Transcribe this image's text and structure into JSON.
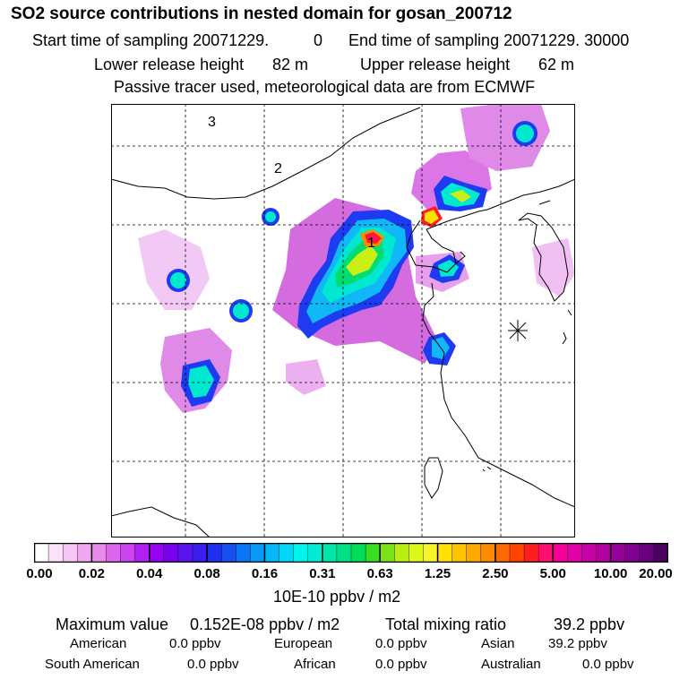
{
  "header": {
    "title": "SO2 source contributions in nested domain for gosan_200712",
    "start_label": "Start time of sampling 20071229.",
    "start_value": "0",
    "end_label": "End time of sampling 20071229. 30000",
    "lower_label": "Lower release height",
    "lower_value": "82 m",
    "upper_label": "Upper release height",
    "upper_value": "62 m",
    "note": "Passive tracer used, meteorological data are from ECMWF"
  },
  "map": {
    "region_labels": [
      "1",
      "2",
      "3"
    ],
    "receptor_marker": "receptor-star"
  },
  "colorbar": {
    "tick_labels": [
      "0.00",
      "0.02",
      "0.04",
      "0.08",
      "0.16",
      "0.31",
      "0.63",
      "1.25",
      "2.50",
      "5.00",
      "10.00",
      "20.00"
    ],
    "unit": "10E-10 ppbv / m2",
    "colors": [
      "#ffffff",
      "#fbe2fb",
      "#f6c6f6",
      "#f0a8f0",
      "#e88ae8",
      "#dc66ec",
      "#cc44f0",
      "#b020f0",
      "#9800f0",
      "#7a00f0",
      "#5a14f0",
      "#3a1ef0",
      "#2030f0",
      "#1850f0",
      "#0a74f4",
      "#0898f8",
      "#04b8fa",
      "#00d8f8",
      "#00f4ee",
      "#00ecd0",
      "#00e6a8",
      "#00e084",
      "#00dc58",
      "#3ade20",
      "#7ae418",
      "#b8ee14",
      "#def818",
      "#f8f42c",
      "#ffe000",
      "#ffc400",
      "#ffa800",
      "#ff8c00",
      "#ff6a00",
      "#ff4400",
      "#ff1e1e",
      "#ff1070",
      "#f40098",
      "#e000a8",
      "#c800a8",
      "#b000a0",
      "#98009a",
      "#800090",
      "#680080",
      "#4c0060"
    ]
  },
  "footer": {
    "max_label": "Maximum value",
    "max_value": "0.152E-08 ppbv / m2",
    "total_label": "Total mixing ratio",
    "total_value": "39.2 ppbv",
    "regions": [
      {
        "name": "American",
        "value": "0.0 ppbv"
      },
      {
        "name": "European",
        "value": "0.0 ppbv"
      },
      {
        "name": "Asian",
        "value": "39.2 ppbv"
      },
      {
        "name": "South American",
        "value": "0.0 ppbv"
      },
      {
        "name": "African",
        "value": "0.0 ppbv"
      },
      {
        "name": "Australian",
        "value": "0.0 ppbv"
      }
    ]
  }
}
